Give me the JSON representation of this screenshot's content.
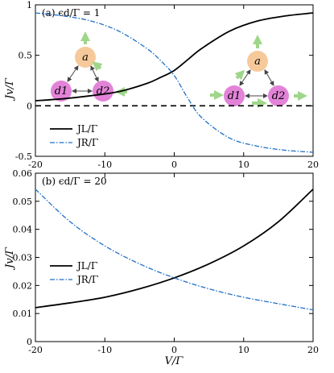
{
  "chart_data": [
    {
      "type": "line",
      "title": "(a) ϵd/Γ = 1",
      "xlabel": "",
      "ylabel": "Jv/Γ",
      "xlim": [
        -20,
        20
      ],
      "ylim": [
        -0.5,
        1.0
      ],
      "xticks": [
        "-20",
        "-10",
        "0",
        "10",
        "20"
      ],
      "yticks": [
        "-0.5",
        "0",
        "0.5",
        "1"
      ],
      "grid": false,
      "legend_position": "bottom-left",
      "zero_line": "dashed",
      "series": [
        {
          "name": "JL/Γ",
          "color": "#000000",
          "style": "solid",
          "x": [
            -20,
            -16,
            -12,
            -8,
            -4,
            -2,
            0,
            2,
            4,
            8,
            12,
            16,
            20
          ],
          "y": [
            0.05,
            0.07,
            0.1,
            0.14,
            0.22,
            0.28,
            0.35,
            0.46,
            0.57,
            0.74,
            0.84,
            0.89,
            0.92
          ]
        },
        {
          "name": "JR/Γ",
          "color": "#1f6fc5",
          "style": "dash-dot",
          "x": [
            -20,
            -16,
            -12,
            -8,
            -4,
            -2,
            0,
            2,
            4,
            8,
            12,
            16,
            20
          ],
          "y": [
            0.92,
            0.89,
            0.84,
            0.74,
            0.57,
            0.45,
            0.3,
            0.07,
            -0.12,
            -0.32,
            -0.4,
            -0.44,
            -0.46
          ]
        }
      ],
      "inset_nodes": [
        "a",
        "d1",
        "d2"
      ],
      "colors": {
        "node_a": "#f6c99a",
        "node_d": "#e283d8",
        "arrow": "#9fd68a"
      }
    },
    {
      "type": "line",
      "title": "(b) ϵd/Γ = 20",
      "xlabel": "V/Γ",
      "ylabel": "Jv/Γ",
      "xlim": [
        -20,
        20
      ],
      "ylim": [
        0,
        0.06
      ],
      "xticks": [
        "-20",
        "-10",
        "0",
        "10",
        "20"
      ],
      "yticks": [
        "0",
        "0.01",
        "0.02",
        "0.03",
        "0.04",
        "0.05",
        "0.06"
      ],
      "grid": false,
      "legend_position": "center-left",
      "series": [
        {
          "name": "JL/Γ",
          "color": "#000000",
          "style": "solid",
          "x": [
            -20,
            -15,
            -10,
            -5,
            0,
            5,
            10,
            15,
            20
          ],
          "y": [
            0.0121,
            0.0138,
            0.0158,
            0.0188,
            0.0227,
            0.0277,
            0.0341,
            0.0427,
            0.0543
          ]
        },
        {
          "name": "JR/Γ",
          "color": "#1f6fc5",
          "style": "dash-dot",
          "x": [
            -20,
            -15,
            -10,
            -5,
            0,
            5,
            10,
            15,
            20
          ],
          "y": [
            0.0543,
            0.0427,
            0.0341,
            0.0277,
            0.0227,
            0.0188,
            0.0158,
            0.0135,
            0.0113
          ]
        }
      ]
    }
  ]
}
